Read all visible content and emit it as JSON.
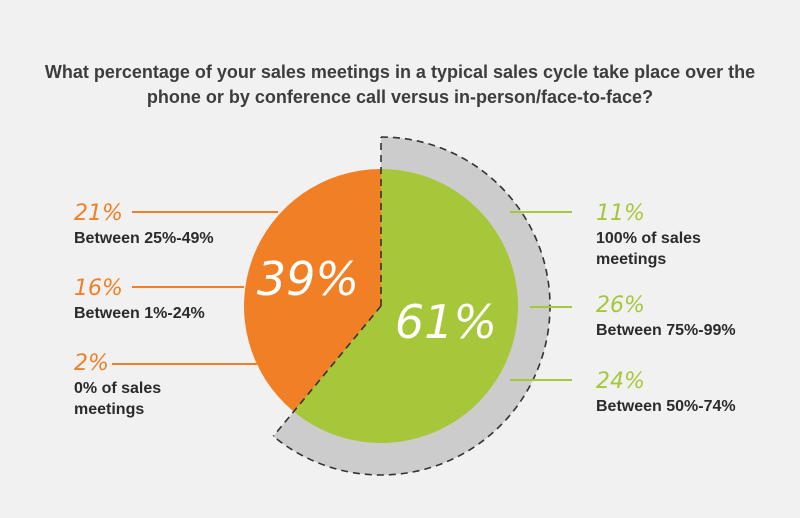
{
  "title": "What percentage of your sales meetings in a typical sales cycle take place over the phone or by conference call versus in-person/face-to-face?",
  "colors": {
    "phone": "#f07f26",
    "in_person": "#a6c739",
    "shadow": "#cccccc",
    "outline": "#333333",
    "background": "#f1f1f1"
  },
  "chart_data": {
    "type": "pie",
    "slices": [
      {
        "label": "",
        "value": 39,
        "display": "39%",
        "color": "#f07f26"
      },
      {
        "label": "",
        "value": 61,
        "display": "61%",
        "color": "#a6c739"
      }
    ],
    "breakdown": {
      "left": [
        {
          "value": 21,
          "display": "21%",
          "label_lines": [
            "Between 25%-49%"
          ]
        },
        {
          "value": 16,
          "display": "16%",
          "label_lines": [
            "Between 1%-24%"
          ]
        },
        {
          "value": 2,
          "display": "2%",
          "label_lines": [
            "0% of sales",
            "meetings"
          ]
        }
      ],
      "right": [
        {
          "value": 11,
          "display": "11%",
          "label_lines": [
            "100% of sales",
            "meetings"
          ]
        },
        {
          "value": 26,
          "display": "26%",
          "label_lines": [
            "Between 75%-99%"
          ]
        },
        {
          "value": 24,
          "display": "24%",
          "label_lines": [
            "Between 50%-74%"
          ]
        }
      ]
    }
  }
}
